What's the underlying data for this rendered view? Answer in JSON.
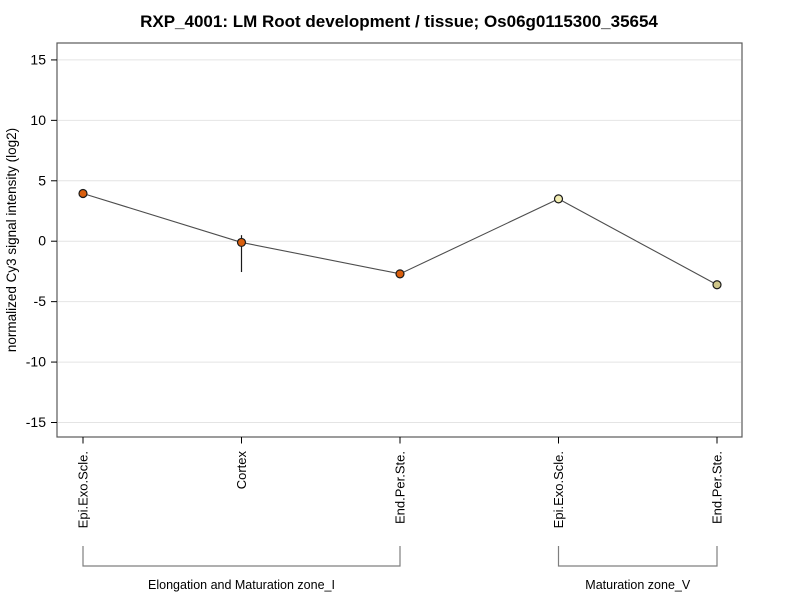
{
  "chart_data": {
    "type": "line",
    "title": "RXP_4001: LM Root development / tissue; Os06g0115300_35654",
    "ylabel": "normalized Cy3 signal intensity (log2)",
    "xlabel": "",
    "ylim": [
      -16.2,
      16.4
    ],
    "yticks": [
      15,
      10,
      5,
      0,
      -5,
      -10,
      -15
    ],
    "grid": true,
    "legend_position": "none",
    "categories": [
      "Epi.Exo.Scle.",
      "Cortex",
      "End.Per.Ste.",
      "Epi.Exo.Scle.",
      "End.Per.Ste."
    ],
    "series": [
      {
        "name": "normalized Cy3 signal intensity (log2)",
        "values": [
          3.95,
          -0.1,
          -2.7,
          3.5,
          -3.6
        ],
        "error_low": [
          3.75,
          -2.55,
          -2.9,
          3.15,
          -3.9
        ],
        "error_high": [
          4.15,
          0.5,
          -2.5,
          3.85,
          -3.3
        ]
      }
    ],
    "point_colors": [
      "#d95f0e",
      "#d95f0e",
      "#d95f0e",
      "#f2edb3",
      "#cfc689"
    ],
    "groups": [
      {
        "label": "Elongation and Maturation zone_I",
        "start": 0,
        "end": 2
      },
      {
        "label": "Maturation zone_V",
        "start": 3,
        "end": 4
      }
    ],
    "colors": {
      "background": "#ffffff",
      "plot_border": "#595959",
      "grid": "#e4e4e4",
      "data_line": "#4d4d4d",
      "error_bar": "#1a1a1a",
      "point_stroke": "#1a1a1a",
      "group_zone_I_point": "#d95f0e",
      "group_zone_V_point": "#f2edb3",
      "bracket": "#7f7f7f",
      "text": "#000000"
    }
  }
}
